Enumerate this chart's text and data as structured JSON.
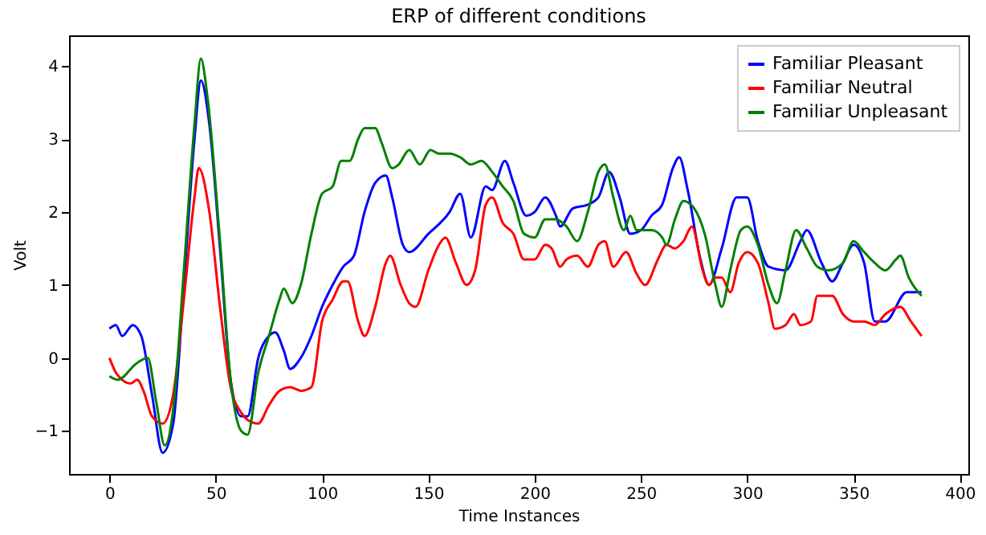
{
  "chart_data": {
    "type": "line",
    "title": "ERP of different conditions",
    "xlabel": "Time Instances",
    "ylabel": "Volt",
    "xlim": [
      -19,
      404
    ],
    "ylim": [
      -1.59,
      4.42
    ],
    "xticks": [
      0,
      50,
      100,
      150,
      200,
      250,
      300,
      350,
      400
    ],
    "yticks": [
      -1,
      0,
      1,
      2,
      3,
      4
    ],
    "grid": false,
    "legend": "top right",
    "series": [
      {
        "name": "Familiar Pleasant",
        "color": "#0000ff",
        "x": [
          0,
          3,
          6,
          11,
          15,
          20,
          25,
          30,
          35,
          40,
          43,
          47,
          52,
          57,
          62,
          65,
          70,
          75,
          78,
          82,
          85,
          90,
          95,
          100,
          105,
          110,
          115,
          120,
          125,
          130,
          133,
          138,
          141,
          150,
          160,
          165,
          170,
          177,
          180,
          186,
          190,
          196,
          200,
          205,
          210,
          212,
          218,
          225,
          230,
          235,
          240,
          245,
          250,
          255,
          260,
          265,
          268,
          272,
          278,
          282,
          288,
          295,
          300,
          305,
          310,
          318,
          325,
          328,
          335,
          340,
          345,
          350,
          355,
          360,
          365,
          375,
          382
        ],
        "values": [
          0.4,
          0.45,
          0.3,
          0.45,
          0.3,
          -0.5,
          -1.3,
          -0.9,
          1.0,
          3.0,
          3.8,
          3.2,
          1.5,
          -0.3,
          -0.8,
          -0.8,
          0.0,
          0.3,
          0.35,
          0.1,
          -0.15,
          0.0,
          0.3,
          0.7,
          1.0,
          1.25,
          1.4,
          2.0,
          2.4,
          2.5,
          2.2,
          1.55,
          1.45,
          1.7,
          2.0,
          2.25,
          1.65,
          2.35,
          2.3,
          2.7,
          2.4,
          1.95,
          2.0,
          2.2,
          1.95,
          1.8,
          2.05,
          2.1,
          2.2,
          2.55,
          2.2,
          1.7,
          1.75,
          1.95,
          2.1,
          2.6,
          2.75,
          2.3,
          1.35,
          1.0,
          1.5,
          2.2,
          2.2,
          1.6,
          1.25,
          1.2,
          1.6,
          1.75,
          1.3,
          1.05,
          1.3,
          1.55,
          1.3,
          0.5,
          0.5,
          0.9,
          0.9
        ]
      },
      {
        "name": "Familiar Neutral",
        "color": "#ff0000",
        "x": [
          0,
          3,
          6,
          10,
          13,
          16,
          20,
          25,
          30,
          35,
          40,
          42,
          47,
          52,
          57,
          62,
          65,
          70,
          75,
          80,
          85,
          90,
          95,
          100,
          105,
          110,
          112,
          117,
          120,
          125,
          130,
          132,
          137,
          141,
          144,
          150,
          155,
          158,
          163,
          168,
          172,
          177,
          180,
          185,
          190,
          195,
          200,
          205,
          208,
          212,
          215,
          220,
          225,
          230,
          233,
          237,
          243,
          248,
          252,
          258,
          262,
          266,
          270,
          274,
          279,
          282,
          285,
          288,
          292,
          296,
          300,
          305,
          310,
          313,
          318,
          322,
          325,
          330,
          333,
          340,
          345,
          350,
          355,
          360,
          365,
          372,
          377,
          382
        ],
        "values": [
          0.0,
          -0.2,
          -0.3,
          -0.35,
          -0.3,
          -0.45,
          -0.8,
          -0.9,
          -0.5,
          0.8,
          2.2,
          2.6,
          2.0,
          0.7,
          -0.4,
          -0.75,
          -0.85,
          -0.9,
          -0.65,
          -0.45,
          -0.4,
          -0.45,
          -0.4,
          0.5,
          0.8,
          1.05,
          1.05,
          0.5,
          0.3,
          0.7,
          1.3,
          1.4,
          1.0,
          0.75,
          0.7,
          1.2,
          1.55,
          1.65,
          1.3,
          1.0,
          1.2,
          2.1,
          2.2,
          1.85,
          1.7,
          1.35,
          1.35,
          1.55,
          1.5,
          1.25,
          1.35,
          1.4,
          1.25,
          1.55,
          1.6,
          1.25,
          1.45,
          1.15,
          1.0,
          1.35,
          1.55,
          1.5,
          1.6,
          1.8,
          1.2,
          1.0,
          1.1,
          1.1,
          0.9,
          1.3,
          1.45,
          1.3,
          0.75,
          0.4,
          0.45,
          0.6,
          0.45,
          0.5,
          0.85,
          0.85,
          0.6,
          0.5,
          0.5,
          0.45,
          0.6,
          0.7,
          0.5,
          0.3
        ]
      },
      {
        "name": "Familiar Unpleasant",
        "color": "#008000",
        "x": [
          0,
          4,
          7,
          10,
          14,
          18,
          22,
          26,
          30,
          35,
          40,
          43,
          46,
          52,
          57,
          62,
          65,
          70,
          75,
          80,
          82,
          86,
          90,
          95,
          100,
          105,
          109,
          113,
          117,
          120,
          125,
          128,
          133,
          136,
          141,
          146,
          151,
          155,
          160,
          165,
          170,
          175,
          180,
          185,
          190,
          195,
          200,
          205,
          210,
          215,
          220,
          225,
          230,
          233,
          237,
          242,
          245,
          248,
          255,
          260,
          262,
          266,
          270,
          275,
          280,
          285,
          288,
          292,
          297,
          300,
          305,
          310,
          314,
          318,
          323,
          328,
          333,
          338,
          345,
          350,
          355,
          360,
          365,
          370,
          372,
          376,
          382
        ],
        "values": [
          -0.25,
          -0.3,
          -0.25,
          -0.15,
          -0.05,
          0.0,
          -0.6,
          -1.2,
          -0.7,
          1.2,
          3.2,
          4.1,
          3.6,
          1.6,
          -0.3,
          -1.0,
          -1.05,
          -0.2,
          0.3,
          0.8,
          0.95,
          0.75,
          1.0,
          1.7,
          2.25,
          2.35,
          2.7,
          2.7,
          3.0,
          3.15,
          3.15,
          2.95,
          2.6,
          2.65,
          2.85,
          2.65,
          2.85,
          2.8,
          2.8,
          2.75,
          2.65,
          2.7,
          2.55,
          2.35,
          2.15,
          1.7,
          1.65,
          1.9,
          1.9,
          1.8,
          1.6,
          2.0,
          2.55,
          2.65,
          2.2,
          1.75,
          1.95,
          1.75,
          1.75,
          1.65,
          1.55,
          1.9,
          2.15,
          2.05,
          1.7,
          1.0,
          0.7,
          1.2,
          1.75,
          1.8,
          1.55,
          1.0,
          0.75,
          1.2,
          1.75,
          1.5,
          1.25,
          1.2,
          1.3,
          1.6,
          1.45,
          1.3,
          1.2,
          1.35,
          1.4,
          1.1,
          0.85
        ]
      }
    ]
  }
}
